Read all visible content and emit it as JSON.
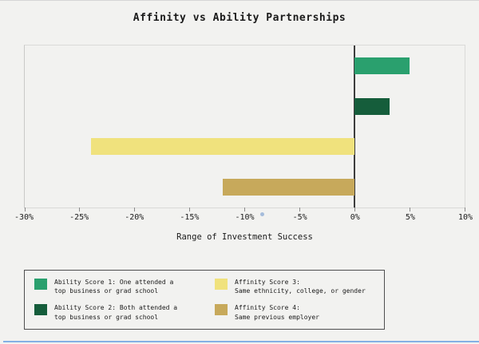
{
  "chart_data": {
    "type": "bar",
    "orientation": "horizontal",
    "title": "Affinity vs Ability Partnerships",
    "xlabel": "Range of Investment Success",
    "xlim": [
      -30,
      10
    ],
    "xticks": [
      "-30%",
      "-25%",
      "-20%",
      "-15%",
      "-10%",
      "-5%",
      "0%",
      "5%",
      "10%"
    ],
    "xtick_values": [
      -30,
      -25,
      -20,
      -15,
      -10,
      -5,
      0,
      5,
      10
    ],
    "zero_line_value": 0,
    "series": [
      {
        "name": "Ability Score 1",
        "value": 5,
        "color": "#2aa06e"
      },
      {
        "name": "Ability Score 2",
        "value": 3.2,
        "color": "#155d3b"
      },
      {
        "name": "Affinity Score 3",
        "value": -24,
        "color": "#f0e27d"
      },
      {
        "name": "Affinity Score 4",
        "value": -12,
        "color": "#c7a95b"
      }
    ],
    "grid": false,
    "legend_position": "bottom-left"
  },
  "legend": {
    "items": [
      {
        "line1": "Ability Score 1: One attended a",
        "line2": "top business or grad school",
        "color": "#2aa06e"
      },
      {
        "line1": "Ability Score 2: Both attended a",
        "line2": "top business or grad school",
        "color": "#155d3b"
      },
      {
        "line1": "Affinity Score 3:",
        "line2": "Same ethnicity, college, or gender",
        "color": "#f0e27d"
      },
      {
        "line1": "Affinity Score 4:",
        "line2": "Same previous employer",
        "color": "#c7a95b"
      }
    ]
  },
  "window": {
    "bottom_edge_color": "#84b0e4"
  }
}
